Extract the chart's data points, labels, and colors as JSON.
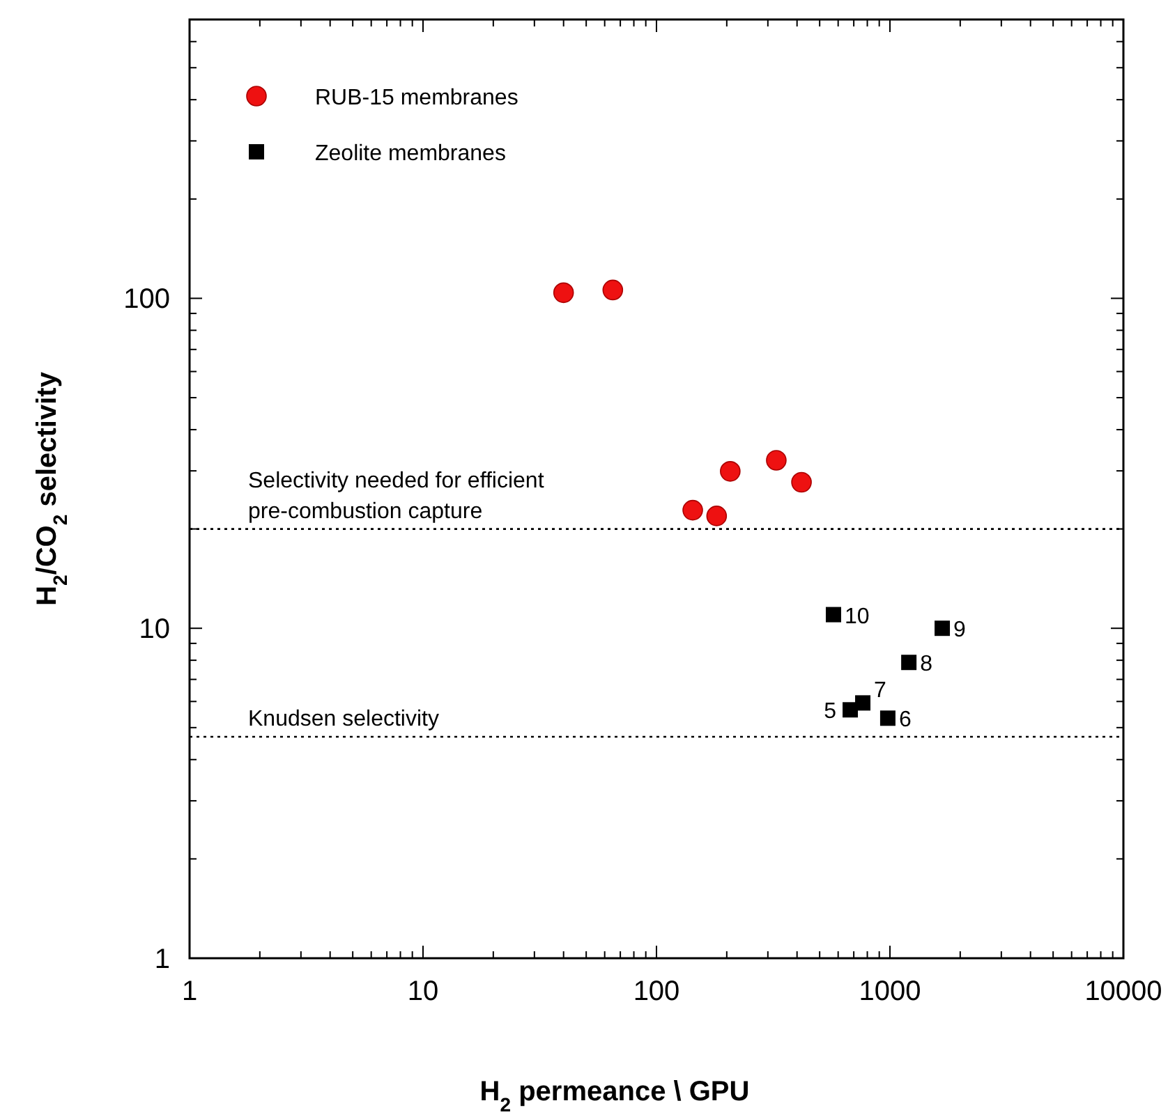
{
  "chart_data": {
    "type": "scatter",
    "xlabel": "H$_{2}$ permeance \\ GPU",
    "ylabel": "H$_{2}$/CO$_{2}$ selectivity",
    "log": "xy",
    "legend": "top left",
    "grid": false,
    "xlim": [
      1,
      10000
    ],
    "ylim": [
      1,
      700
    ],
    "xticks": [
      1,
      {
        "value": 2,
        "label": null
      },
      {
        "value": 3,
        "label": null
      },
      {
        "value": 4,
        "label": null
      },
      {
        "value": 5,
        "label": null
      },
      {
        "value": 6,
        "label": null
      },
      {
        "value": 7,
        "label": null
      },
      {
        "value": 8,
        "label": null
      },
      {
        "value": 9,
        "label": null
      },
      10,
      {
        "value": 20,
        "label": null
      },
      {
        "value": 30,
        "label": null
      },
      {
        "value": 40,
        "label": null
      },
      {
        "value": 50,
        "label": null
      },
      {
        "value": 60,
        "label": null
      },
      {
        "value": 70,
        "label": null
      },
      {
        "value": 80,
        "label": null
      },
      {
        "value": 90,
        "label": null
      },
      100,
      {
        "value": 200,
        "label": null
      },
      {
        "value": 300,
        "label": null
      },
      {
        "value": 400,
        "label": null
      },
      {
        "value": 500,
        "label": null
      },
      {
        "value": 600,
        "label": null
      },
      {
        "value": 700,
        "label": null
      },
      {
        "value": 800,
        "label": null
      },
      {
        "value": 900,
        "label": null
      },
      1000,
      {
        "value": 2000,
        "label": null
      },
      {
        "value": 3000,
        "label": null
      },
      {
        "value": 4000,
        "label": null
      },
      {
        "value": 5000,
        "label": null
      },
      {
        "value": 6000,
        "label": null
      },
      {
        "value": 7000,
        "label": null
      },
      {
        "value": 8000,
        "label": null
      },
      {
        "value": 9000,
        "label": null
      },
      10000
    ],
    "yticks": [
      1,
      {
        "value": 2,
        "label": null
      },
      {
        "value": 3,
        "label": null
      },
      {
        "value": 4,
        "label": null
      },
      {
        "value": 5,
        "label": null
      },
      {
        "value": 6,
        "label": null
      },
      {
        "value": 7,
        "label": null
      },
      {
        "value": 8,
        "label": null
      },
      {
        "value": 9,
        "label": null
      },
      10,
      {
        "value": 20,
        "label": null
      },
      {
        "value": 30,
        "label": null
      },
      {
        "value": 40,
        "label": null
      },
      {
        "value": 50,
        "label": null
      },
      {
        "value": 60,
        "label": null
      },
      {
        "value": 70,
        "label": null
      },
      {
        "value": 80,
        "label": null
      },
      {
        "value": 90,
        "label": null
      },
      100,
      {
        "value": 200,
        "label": null
      },
      {
        "value": 300,
        "label": null
      },
      {
        "value": 400,
        "label": null
      },
      {
        "value": 500,
        "label": null
      },
      {
        "value": 600,
        "label": null
      }
    ],
    "series": [
      {
        "name": "RUB-15 membranes",
        "color": "#ee1111",
        "marker": "circle",
        "x": [
          40,
          65,
          143,
          181,
          207,
          326,
          418
        ],
        "values": [
          104,
          106,
          22.8,
          21.9,
          29.9,
          32.3,
          27.7
        ]
      },
      {
        "name": "Zeolite membranes",
        "color": "#000000",
        "marker": "square",
        "x": [
          676,
          979,
          765,
          1205,
          1675,
          573
        ],
        "values": [
          5.66,
          5.34,
          5.94,
          7.88,
          10.0,
          11.0
        ]
      }
    ],
    "ref_lines": [
      {
        "axis": "y",
        "value": 20,
        "label": "Selectivity needed for efficient\npre-combustion capture",
        "color": "#000000",
        "line_style": "dotted"
      },
      {
        "axis": "y",
        "value": 4.69,
        "label": "Knudsen selectivity",
        "color": "#000000",
        "line_style": "dotted"
      }
    ],
    "annotations": [
      {
        "text": "5",
        "x": 676,
        "y": 5.66
      },
      {
        "text": "6",
        "x": 979,
        "y": 5.34
      },
      {
        "text": "7",
        "x": 765,
        "y": 5.94
      },
      {
        "text": "8",
        "x": 1205,
        "y": 7.88
      },
      {
        "text": "9",
        "x": 1675,
        "y": 10.0
      },
      {
        "text": "10",
        "x": 573,
        "y": 11.0
      }
    ]
  }
}
